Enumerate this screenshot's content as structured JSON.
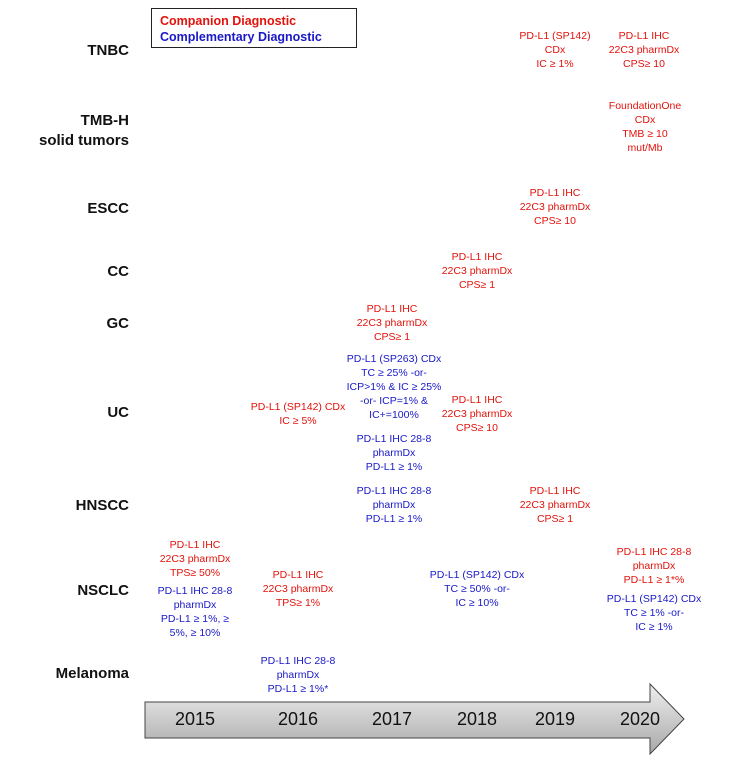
{
  "legend": {
    "companion": "Companion Diagnostic",
    "complementary": "Complementary Diagnostic"
  },
  "rows": {
    "tnbc": "TNBC",
    "tmbh_1": "TMB-H",
    "tmbh_2": "solid tumors",
    "escc": "ESCC",
    "cc": "CC",
    "gc": "GC",
    "uc": "UC",
    "hnscc": "HNSCC",
    "nsclc": "NSCLC",
    "melanoma": "Melanoma"
  },
  "years": [
    "2015",
    "2016",
    "2017",
    "2018",
    "2019",
    "2020"
  ],
  "entries": {
    "tnbc_2019": [
      "PD-L1 (SP142)",
      "CDx",
      "IC ≥ 1%"
    ],
    "tnbc_2020": [
      "PD-L1 IHC",
      "22C3 pharmDx",
      "CPS≥ 10"
    ],
    "tmbh_2020": [
      "FoundationOne",
      "CDx",
      "TMB ≥ 10",
      "mut/Mb"
    ],
    "escc_2019": [
      "PD-L1 IHC",
      "22C3 pharmDx",
      "CPS≥ 10"
    ],
    "cc_2018": [
      "PD-L1 IHC",
      "22C3 pharmDx",
      "CPS≥ 1"
    ],
    "gc_2017": [
      "PD-L1 IHC",
      "22C3 pharmDx",
      "CPS≥ 1"
    ],
    "uc_2016": [
      "PD-L1 (SP142) CDx",
      "IC ≥ 5%"
    ],
    "uc_2017_a": [
      "PD-L1 (SP263) CDx",
      "TC ≥ 25% -or-",
      "ICP>1% & IC ≥ 25%",
      "-or- ICP=1% &",
      "IC+=100%"
    ],
    "uc_2017_b": [
      "PD-L1 IHC 28-8",
      "pharmDx",
      "PD-L1 ≥ 1%"
    ],
    "uc_2018": [
      "PD-L1 IHC",
      "22C3 pharmDx",
      "CPS≥ 10"
    ],
    "hnscc_2017": [
      "PD-L1 IHC 28-8",
      "pharmDx",
      "PD-L1 ≥ 1%"
    ],
    "hnscc_2019": [
      "PD-L1 IHC",
      "22C3 pharmDx",
      "CPS≥ 1"
    ],
    "nsclc_2015_a": [
      "PD-L1 IHC",
      "22C3 pharmDx",
      "TPS≥ 50%"
    ],
    "nsclc_2015_b": [
      "PD-L1 IHC 28-8",
      "pharmDx",
      "PD-L1 ≥ 1%, ≥",
      "5%, ≥ 10%"
    ],
    "nsclc_2016": [
      "PD-L1 IHC",
      "22C3 pharmDx",
      "TPS≥ 1%"
    ],
    "nsclc_2018": [
      "PD-L1 (SP142) CDx",
      "TC ≥ 50% -or-",
      "IC ≥ 10%"
    ],
    "nsclc_2020_a": [
      "PD-L1 IHC 28-8",
      "pharmDx",
      "PD-L1 ≥ 1*%"
    ],
    "nsclc_2020_b": [
      "PD-L1 (SP142) CDx",
      "TC ≥ 1% -or-",
      "IC ≥ 1%"
    ],
    "melanoma_2016": [
      "PD-L1 IHC 28-8",
      "pharmDx",
      "PD-L1 ≥ 1%*"
    ]
  },
  "colors": {
    "companion": "#e3120b",
    "complementary": "#1818c8",
    "arrow_fill_light": "#eeeeee",
    "arrow_fill_dark": "#a9a9a9"
  }
}
